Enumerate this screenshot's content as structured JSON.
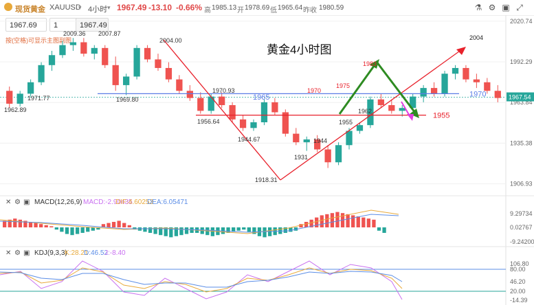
{
  "toolbar": {
    "symbol_cn": "现货黄金",
    "symbol": "XAUUSD",
    "timeframe": "4小时",
    "price": "1967.49",
    "change": "-13.10",
    "change_pct": "-0.66%",
    "high_label": "高",
    "high": "1985.13",
    "open_label": "开",
    "open": "1978.69",
    "low_label": "低",
    "low": "1965.64",
    "close_label": "昨收",
    "close": "1980.59"
  },
  "order": {
    "sell_price": "1967.69",
    "quantity": "1",
    "buy_price": "1967.49"
  },
  "hint_text": "按(空格)可显示主图副图",
  "title_annotation": "黄金4小时图",
  "colors": {
    "up": "#26a69a",
    "down": "#ef5350",
    "trend": "#e8212b",
    "support": "#5b7de6",
    "arrow_green": "#2e8b22",
    "arrow_magenta": "#e03fe0"
  },
  "chart_data": [
    {
      "type": "candlestick",
      "timeframe": "4H",
      "y_axis_ticks": [
        "2020.74",
        "1992.29",
        "1963.84",
        "1935.38",
        "1906.93"
      ],
      "ylim": [
        1900,
        2025
      ],
      "current_price": "1967.54",
      "price_labels": [
        "2009.36",
        "2007.87",
        "2004.00",
        "1971.77",
        "1962.89",
        "1969.80",
        "1970.93",
        "1956.64",
        "1944.67",
        "1918.31",
        "1931",
        "1944",
        "1955",
        "1962",
        "1970",
        "1975",
        "1983"
      ],
      "levels": [
        {
          "label": "1970",
          "value": 1970,
          "color": "#5b7de6"
        },
        {
          "label": "1965",
          "value": 1965,
          "color": "#5b7de6"
        },
        {
          "label": "1955",
          "value": 1955,
          "color": "#e8212b"
        }
      ],
      "trend_lines": [
        {
          "from": [
            12,
            2004
          ],
          "to": [
            31,
            1918
          ]
        },
        {
          "from": [
            31,
            1918
          ],
          "to": [
            105,
            2004
          ]
        }
      ],
      "arrow_targets": [
        "2004",
        "1955"
      ],
      "candles": [
        [
          1972,
          1975,
          1960,
          1963
        ],
        [
          1963,
          1972,
          1961,
          1970
        ],
        [
          1970,
          1980,
          1968,
          1978
        ],
        [
          1978,
          1992,
          1976,
          1990
        ],
        [
          1990,
          2000,
          1986,
          1997
        ],
        [
          1997,
          2007,
          1995,
          2004
        ],
        [
          2004,
          2009,
          2000,
          2006
        ],
        [
          2006,
          2009,
          1996,
          1998
        ],
        [
          1998,
          2004,
          1994,
          2002
        ],
        [
          2002,
          2004,
          1988,
          1990
        ],
        [
          1990,
          1996,
          1972,
          1976
        ],
        [
          1976,
          1984,
          1969,
          1982
        ],
        [
          1982,
          2004,
          1980,
          2002
        ],
        [
          2002,
          2004,
          1992,
          1994
        ],
        [
          1994,
          1998,
          1986,
          1988
        ],
        [
          1988,
          1992,
          1978,
          1980
        ],
        [
          1980,
          1983,
          1970,
          1972
        ],
        [
          1972,
          1976,
          1965,
          1967
        ],
        [
          1967,
          1971,
          1956,
          1958
        ],
        [
          1958,
          1970,
          1956,
          1968
        ],
        [
          1968,
          1971,
          1960,
          1962
        ],
        [
          1962,
          1964,
          1950,
          1952
        ],
        [
          1952,
          1955,
          1944,
          1946
        ],
        [
          1946,
          1952,
          1944,
          1950
        ],
        [
          1950,
          1966,
          1948,
          1964
        ],
        [
          1964,
          1967,
          1955,
          1957
        ],
        [
          1957,
          1959,
          1940,
          1942
        ],
        [
          1942,
          1946,
          1934,
          1936
        ],
        [
          1936,
          1940,
          1930,
          1938
        ],
        [
          1938,
          1941,
          1929,
          1931
        ],
        [
          1931,
          1934,
          1918,
          1922
        ],
        [
          1922,
          1936,
          1920,
          1934
        ],
        [
          1934,
          1946,
          1931,
          1944
        ],
        [
          1944,
          1950,
          1942,
          1948
        ],
        [
          1948,
          1968,
          1946,
          1966
        ],
        [
          1966,
          1970,
          1960,
          1962
        ],
        [
          1962,
          1966,
          1956,
          1958
        ],
        [
          1958,
          1962,
          1954,
          1960
        ],
        [
          1960,
          1970,
          1958,
          1968
        ],
        [
          1968,
          1976,
          1964,
          1974
        ],
        [
          1974,
          1978,
          1968,
          1970
        ],
        [
          1970,
          1986,
          1968,
          1984
        ],
        [
          1984,
          1990,
          1980,
          1988
        ],
        [
          1988,
          1990,
          1978,
          1980
        ],
        [
          1980,
          1984,
          1974,
          1978
        ],
        [
          1978,
          1981,
          1970,
          1972
        ],
        [
          1972,
          1976,
          1964,
          1967
        ]
      ]
    },
    {
      "type": "macd",
      "label": "MACD(12,26,9)",
      "macd": "MACD:-2.90435",
      "dif": "DIF:4.60253",
      "dea": "DEA:6.05471",
      "y_axis_ticks": [
        "9.29734",
        "0.02767",
        "-9.24200"
      ]
    },
    {
      "type": "kdj",
      "label": "KDJ(9,3,3)",
      "k": "K:28.21",
      "d": "D:46.52",
      "j": "J:-8.40",
      "y_axis_ticks": [
        "106.80",
        "80.00",
        "46.20",
        "20.00",
        "-14.39"
      ]
    }
  ]
}
